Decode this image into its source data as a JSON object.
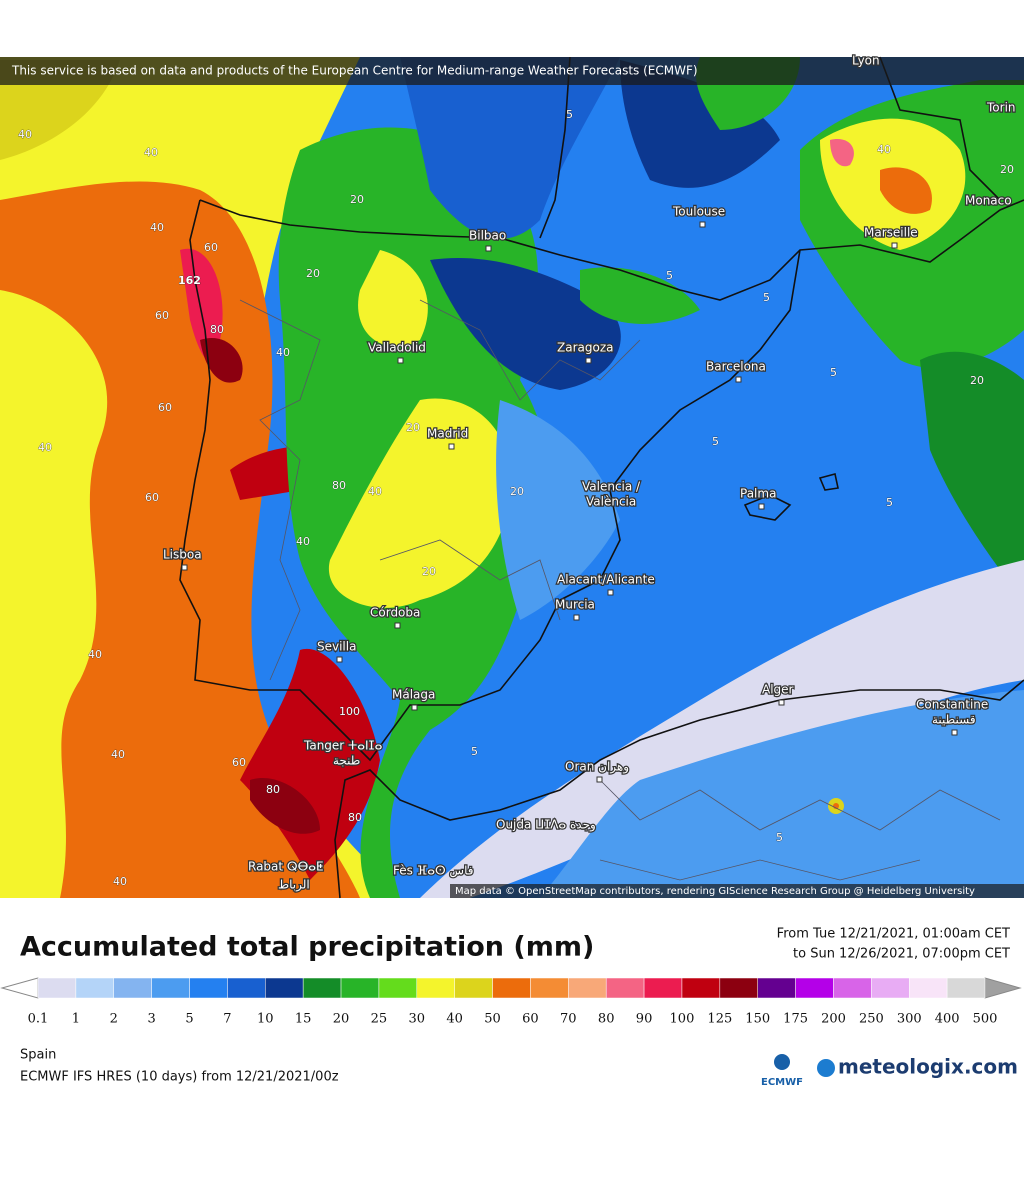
{
  "header": {
    "banner": "This service is based on data and products of the European Centre for Medium-range Weather Forecasts (ECMWF)"
  },
  "map": {
    "places": [
      "Lyon",
      "Torin",
      "Toulouse",
      "Bilbao",
      "Monaco",
      "Marseille",
      "Valladolid",
      "Zaragoza",
      "Barcelona",
      "Madrid",
      "Valencia /",
      "València",
      "Palma",
      "Lisboa",
      "Alacant/Alicante",
      "Murcia",
      "Córdoba",
      "Sevilla",
      "Málaga",
      "Alger",
      "Constantine",
      "قسنطينة",
      "Tanger ⵜⴰⵏⵊⴰ",
      "طنجة",
      "Oran وهران",
      "Oujda ⵡⵊⴷⴰ وجدة",
      "Rabat ⵕⴱⴰⵟ",
      "الرباط",
      "Fès ⴼⴰⵙ فاس"
    ],
    "contours": [
      162,
      40,
      40,
      40,
      60,
      60,
      80,
      40,
      60,
      40,
      60,
      80,
      40,
      40,
      20,
      20,
      20,
      20,
      20,
      5,
      5,
      5,
      5,
      5,
      5,
      40,
      20,
      20,
      40,
      40,
      60,
      100,
      80,
      80,
      5,
      5,
      40
    ],
    "attribution": "Map data © OpenStreetMap contributors, rendering GIScience Research Group @ Heidelberg University"
  },
  "title": "Accumulated total precipitation (mm)",
  "period": {
    "from": "From Tue 12/21/2021, 01:00am CET",
    "to": "to Sun 12/26/2021, 07:00pm CET"
  },
  "legend": {
    "labels": [
      0.1,
      1,
      2,
      3,
      5,
      7,
      10,
      15,
      20,
      25,
      30,
      40,
      50,
      60,
      70,
      80,
      90,
      100,
      125,
      150,
      175,
      200,
      250,
      300,
      400,
      500
    ],
    "colors": [
      "#dcdcf0",
      "#b4d4f8",
      "#84b4f0",
      "#4c9cf0",
      "#2480f0",
      "#1860d0",
      "#0c3890",
      "#148c28",
      "#28b428",
      "#64dc1c",
      "#f4f42c",
      "#dcd41c",
      "#ec6c0c",
      "#f48c34",
      "#f8a878",
      "#f46484",
      "#ec1c50",
      "#c00010",
      "#8c0010",
      "#640090",
      "#b400e8",
      "#d864e8",
      "#e8acf4",
      "#f8e4f8",
      "#d8d8d8"
    ],
    "under_color": "#ffffff",
    "over_color": "#a0a0a0"
  },
  "footer": {
    "region": "Spain",
    "model": "ECMWF IFS HRES (10 days) from 12/21/2021/00z",
    "logos": [
      "ECMWF",
      "meteologix.com"
    ]
  }
}
